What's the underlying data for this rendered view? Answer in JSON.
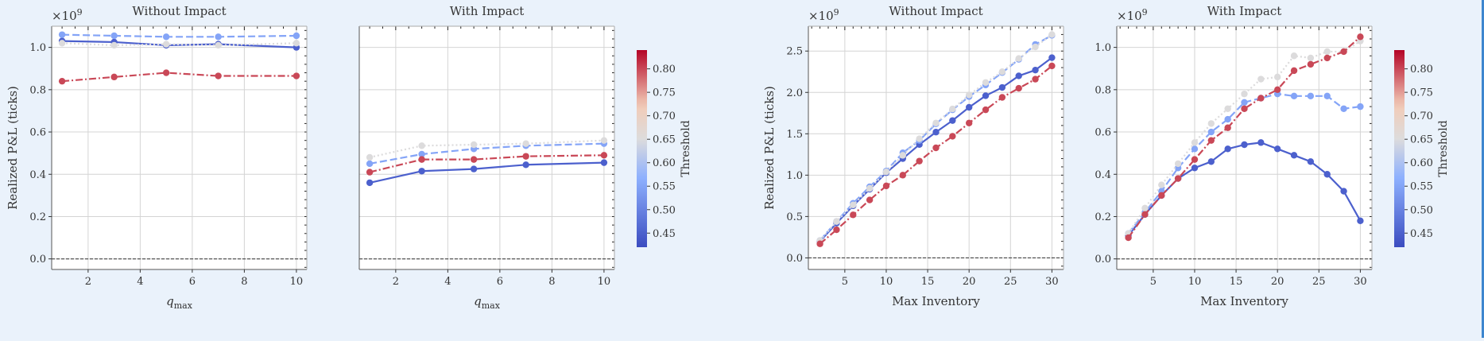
{
  "colors": {
    "low": "#3b4cc0",
    "mid_low": "#8db0fe",
    "mid_high": "#f2cbb7",
    "high": "#b40426",
    "grid": "#d4d4d4",
    "zero_line": "#333333"
  },
  "colorbar": {
    "label": "Threshold",
    "ticks": [
      "0.45",
      "0.50",
      "0.55",
      "0.60",
      "0.65",
      "0.70",
      "0.75",
      "0.80"
    ],
    "range": [
      0.42,
      0.84
    ]
  },
  "chart_data": [
    {
      "type": "line",
      "title": "Without Impact",
      "xlabel": "q",
      "xlabel_sub": "max",
      "ylabel": "Realized P&L (ticks)",
      "exponent": "×10",
      "exponent_power": "9",
      "xlim": [
        0.6,
        10.4
      ],
      "ylim": [
        -0.05,
        1.1
      ],
      "xticks": [
        2,
        4,
        6,
        8,
        10
      ],
      "yticks": [
        0.0,
        0.2,
        0.4,
        0.6,
        0.8,
        1.0
      ],
      "ytick_labels": [
        "0.0",
        "0.2",
        "0.4",
        "0.6",
        "0.8",
        "1.0"
      ],
      "grid": true,
      "series": [
        {
          "threshold": 0.45,
          "style": "solid",
          "x": [
            1,
            3,
            5,
            7,
            10
          ],
          "values": [
            1.03,
            1.025,
            1.01,
            1.015,
            1.0
          ]
        },
        {
          "threshold": 0.55,
          "style": "dashed",
          "x": [
            1,
            3,
            5,
            7,
            10
          ],
          "values": [
            1.06,
            1.055,
            1.05,
            1.05,
            1.055
          ]
        },
        {
          "threshold": 0.65,
          "style": "dotted",
          "x": [
            1,
            3,
            5,
            7,
            10
          ],
          "values": [
            1.02,
            1.01,
            1.015,
            1.01,
            1.02
          ]
        },
        {
          "threshold": 0.8,
          "style": "dashdot",
          "x": [
            1,
            3,
            5,
            7,
            10
          ],
          "values": [
            0.84,
            0.86,
            0.88,
            0.865,
            0.865
          ]
        }
      ]
    },
    {
      "type": "line",
      "title": "With Impact",
      "xlabel": "q",
      "xlabel_sub": "max",
      "ylabel": "",
      "xlim": [
        0.6,
        10.4
      ],
      "ylim": [
        -0.05,
        1.1
      ],
      "xticks": [
        2,
        4,
        6,
        8,
        10
      ],
      "yticks": [],
      "ytick_labels": [],
      "grid": true,
      "series": [
        {
          "threshold": 0.45,
          "style": "solid",
          "x": [
            1,
            3,
            5,
            7,
            10
          ],
          "values": [
            0.36,
            0.415,
            0.425,
            0.445,
            0.455
          ]
        },
        {
          "threshold": 0.55,
          "style": "dashed",
          "x": [
            1,
            3,
            5,
            7,
            10
          ],
          "values": [
            0.45,
            0.495,
            0.52,
            0.535,
            0.545
          ]
        },
        {
          "threshold": 0.65,
          "style": "dotted",
          "x": [
            1,
            3,
            5,
            7,
            10
          ],
          "values": [
            0.48,
            0.535,
            0.54,
            0.545,
            0.56
          ]
        },
        {
          "threshold": 0.8,
          "style": "dashdot",
          "x": [
            1,
            3,
            5,
            7,
            10
          ],
          "values": [
            0.41,
            0.47,
            0.47,
            0.485,
            0.49
          ]
        }
      ]
    },
    {
      "type": "line",
      "title": "Without Impact",
      "xlabel": "Max Inventory",
      "xlabel_sub": "",
      "ylabel": "Realized P&L (ticks)",
      "exponent": "×10",
      "exponent_power": "9",
      "xlim": [
        0.6,
        31.4
      ],
      "ylim": [
        -0.14,
        2.8
      ],
      "xticks": [
        5,
        10,
        15,
        20,
        25,
        30
      ],
      "yticks": [
        0.0,
        0.5,
        1.0,
        1.5,
        2.0,
        2.5
      ],
      "ytick_labels": [
        "0.0",
        "0.5",
        "1.0",
        "1.5",
        "2.0",
        "2.5"
      ],
      "grid": true,
      "series": [
        {
          "threshold": 0.45,
          "style": "solid",
          "x": [
            2,
            4,
            6,
            8,
            10,
            12,
            14,
            16,
            18,
            20,
            22,
            24,
            26,
            28,
            30
          ],
          "values": [
            0.2,
            0.42,
            0.63,
            0.83,
            1.03,
            1.2,
            1.37,
            1.52,
            1.66,
            1.82,
            1.96,
            2.06,
            2.2,
            2.27,
            2.42
          ]
        },
        {
          "threshold": 0.55,
          "style": "dashed",
          "x": [
            2,
            4,
            6,
            8,
            10,
            12,
            14,
            16,
            18,
            20,
            22,
            24,
            26,
            28,
            30
          ],
          "values": [
            0.21,
            0.44,
            0.66,
            0.86,
            1.05,
            1.27,
            1.42,
            1.62,
            1.79,
            1.95,
            2.09,
            2.24,
            2.4,
            2.58,
            2.69
          ]
        },
        {
          "threshold": 0.65,
          "style": "dotted",
          "x": [
            2,
            4,
            6,
            8,
            10,
            12,
            14,
            16,
            18,
            20,
            22,
            24,
            26,
            28,
            30
          ],
          "values": [
            0.21,
            0.44,
            0.64,
            0.84,
            1.04,
            1.24,
            1.44,
            1.63,
            1.8,
            1.97,
            2.12,
            2.25,
            2.41,
            2.55,
            2.7
          ]
        },
        {
          "threshold": 0.8,
          "style": "dashdot",
          "x": [
            2,
            4,
            6,
            8,
            10,
            12,
            14,
            16,
            18,
            20,
            22,
            24,
            26,
            28,
            30
          ],
          "values": [
            0.17,
            0.34,
            0.52,
            0.7,
            0.87,
            1.0,
            1.17,
            1.33,
            1.47,
            1.63,
            1.79,
            1.94,
            2.05,
            2.16,
            2.32
          ]
        }
      ]
    },
    {
      "type": "line",
      "title": "With Impact",
      "xlabel": "Max Inventory",
      "xlabel_sub": "",
      "ylabel": "",
      "exponent": "×10",
      "exponent_power": "9",
      "xlim": [
        0.6,
        31.4
      ],
      "ylim": [
        -0.05,
        1.1
      ],
      "xticks": [
        5,
        10,
        15,
        20,
        25,
        30
      ],
      "yticks": [
        0.0,
        0.2,
        0.4,
        0.6,
        0.8,
        1.0
      ],
      "ytick_labels": [
        "0.0",
        "0.2",
        "0.4",
        "0.6",
        "0.8",
        "1.0"
      ],
      "grid": true,
      "series": [
        {
          "threshold": 0.45,
          "style": "solid",
          "x": [
            2,
            4,
            6,
            8,
            10,
            12,
            14,
            16,
            18,
            20,
            22,
            24,
            26,
            28,
            30
          ],
          "values": [
            0.11,
            0.21,
            0.3,
            0.38,
            0.43,
            0.46,
            0.52,
            0.54,
            0.55,
            0.52,
            0.49,
            0.46,
            0.4,
            0.32,
            0.18
          ]
        },
        {
          "threshold": 0.55,
          "style": "dashed",
          "x": [
            2,
            4,
            6,
            8,
            10,
            12,
            14,
            16,
            18,
            20,
            22,
            24,
            26,
            28,
            30
          ],
          "values": [
            0.12,
            0.22,
            0.32,
            0.43,
            0.52,
            0.6,
            0.66,
            0.74,
            0.76,
            0.78,
            0.77,
            0.77,
            0.77,
            0.71,
            0.72
          ]
        },
        {
          "threshold": 0.65,
          "style": "dotted",
          "x": [
            2,
            4,
            6,
            8,
            10,
            12,
            14,
            16,
            18,
            20,
            22,
            24,
            26,
            28,
            30
          ],
          "values": [
            0.12,
            0.24,
            0.35,
            0.45,
            0.55,
            0.64,
            0.71,
            0.78,
            0.85,
            0.86,
            0.96,
            0.95,
            0.98,
            0.98,
            1.03
          ]
        },
        {
          "threshold": 0.8,
          "style": "dashdot",
          "x": [
            2,
            4,
            6,
            8,
            10,
            12,
            14,
            16,
            18,
            20,
            22,
            24,
            26,
            28,
            30
          ],
          "values": [
            0.1,
            0.21,
            0.3,
            0.38,
            0.47,
            0.56,
            0.62,
            0.71,
            0.76,
            0.8,
            0.89,
            0.92,
            0.95,
            0.98,
            1.05
          ]
        }
      ]
    }
  ]
}
